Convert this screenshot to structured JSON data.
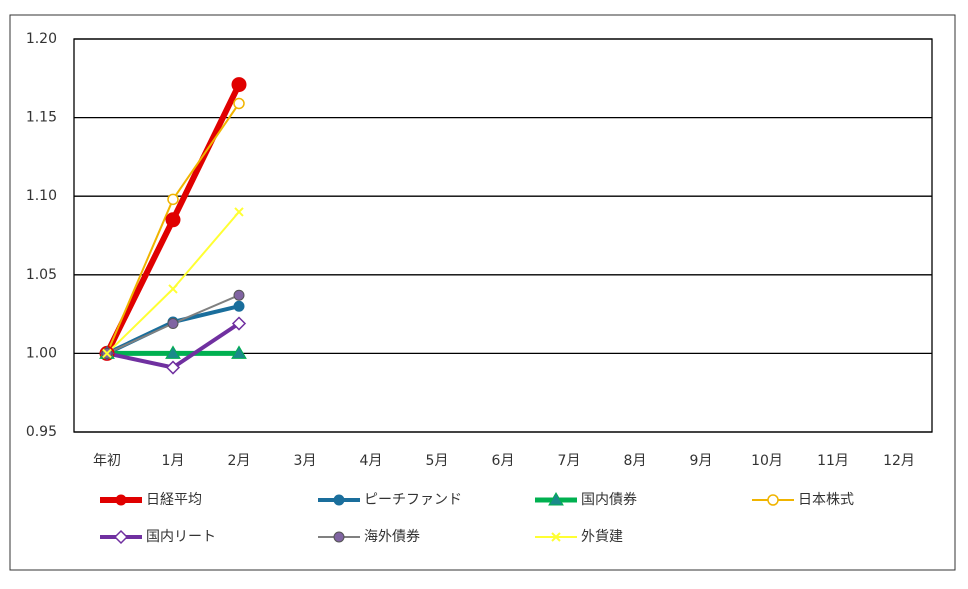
{
  "chart_data": {
    "type": "line",
    "categories": [
      "年初",
      "1月",
      "2月",
      "3月",
      "4月",
      "5月",
      "6月",
      "7月",
      "8月",
      "9月",
      "10月",
      "11月",
      "12月"
    ],
    "series": [
      {
        "name": "日経平均",
        "color": "#e00000",
        "marker": "circle",
        "values": [
          1.0,
          1.085,
          1.171,
          null,
          null,
          null,
          null,
          null,
          null,
          null,
          null,
          null,
          null
        ]
      },
      {
        "name": "ピーチファンド",
        "color": "#1a6e9c",
        "marker": "circle",
        "values": [
          1.0,
          1.02,
          1.03,
          null,
          null,
          null,
          null,
          null,
          null,
          null,
          null,
          null,
          null
        ]
      },
      {
        "name": "国内債券",
        "color": "#00b050",
        "marker": "triangle",
        "values": [
          1.0,
          1.0,
          1.0,
          null,
          null,
          null,
          null,
          null,
          null,
          null,
          null,
          null,
          null
        ]
      },
      {
        "name": "日本株式",
        "color": "#f0b400",
        "marker": "open-circle",
        "values": [
          1.0,
          1.098,
          1.159,
          null,
          null,
          null,
          null,
          null,
          null,
          null,
          null,
          null,
          null
        ]
      },
      {
        "name": "国内リート",
        "color": "#7030a0",
        "marker": "open-diamond",
        "values": [
          1.0,
          0.991,
          1.019,
          null,
          null,
          null,
          null,
          null,
          null,
          null,
          null,
          null,
          null
        ]
      },
      {
        "name": "海外債券",
        "color": "#808080",
        "marker": "circle-purple",
        "values": [
          1.0,
          1.019,
          1.037,
          null,
          null,
          null,
          null,
          null,
          null,
          null,
          null,
          null,
          null
        ]
      },
      {
        "name": "外貨建",
        "color": "#ffff33",
        "marker": "x",
        "values": [
          1.0,
          1.041,
          1.09,
          null,
          null,
          null,
          null,
          null,
          null,
          null,
          null,
          null,
          null
        ]
      }
    ],
    "ylim": [
      0.95,
      1.2
    ],
    "yticks": [
      0.95,
      {
        "value": 1.0,
        "label": "1.00"
      },
      1.05,
      {
        "value": 1.1,
        "label": "1.10"
      },
      1.15,
      {
        "value": 1.2,
        "label": "1.20"
      }
    ],
    "grid": true
  }
}
